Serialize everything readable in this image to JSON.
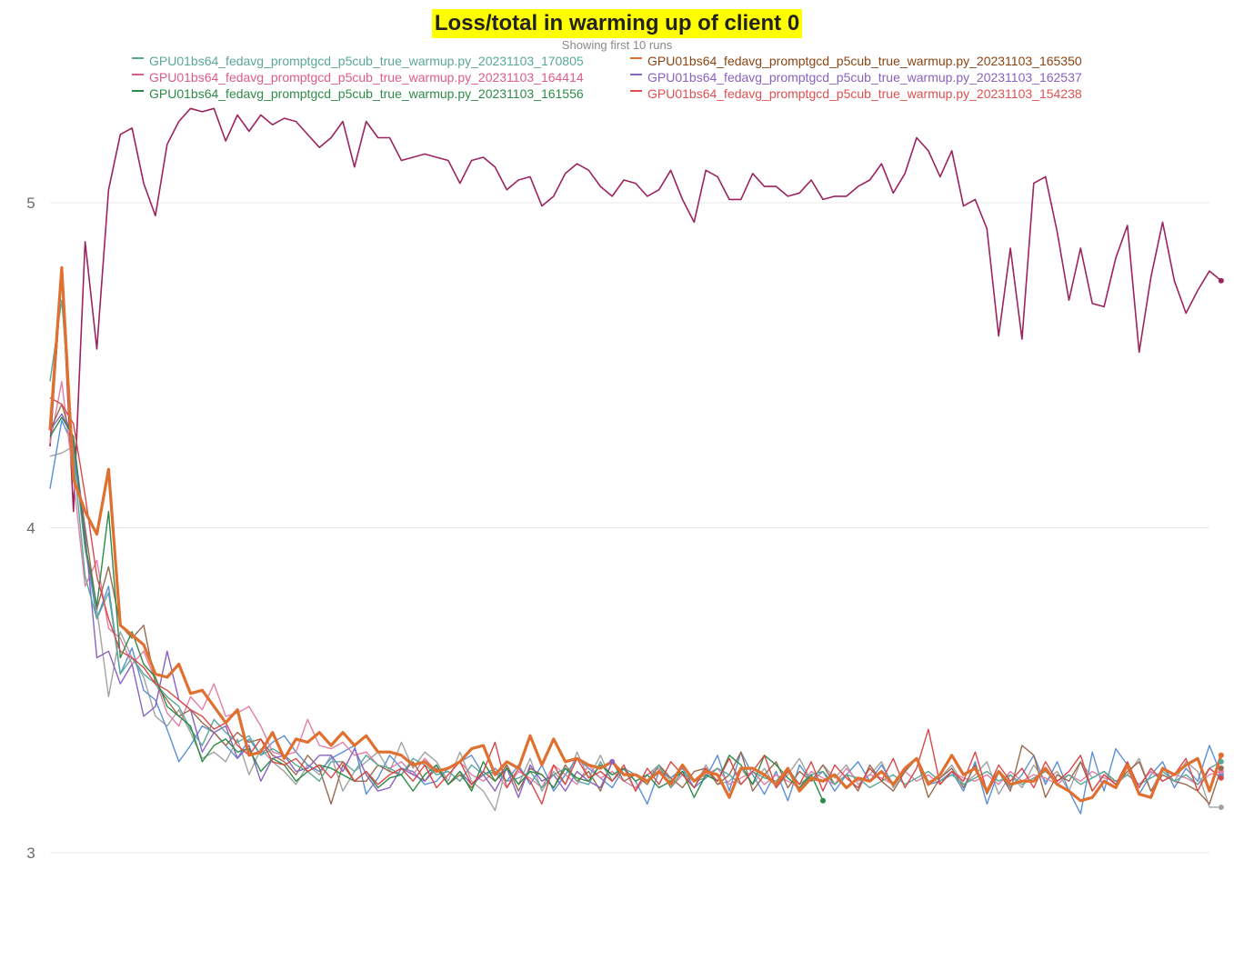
{
  "chart_data": {
    "type": "line",
    "title": "Loss/total in warming up of client 0",
    "subtitle": "Showing first 10 runs",
    "ylim": [
      2.95,
      5.35
    ],
    "xlim": [
      0,
      99
    ],
    "yticks": [
      3,
      4,
      5
    ],
    "grid": true,
    "legend_position": "top",
    "legend_entries": [
      {
        "name": "GPU01bs64_fedavg_promptgcd_p5cub_true_warmup.py_20231103_170805",
        "color": "#5aa897"
      },
      {
        "name": "GPU01bs64_fedavg_promptgcd_p5cub_true_warmup.py_20231103_165350",
        "color": "#8b4513"
      },
      {
        "name": "GPU01bs64_fedavg_promptgcd_p5cub_true_warmup.py_20231103_164414",
        "color": "#e05c8a"
      },
      {
        "name": "GPU01bs64_fedavg_promptgcd_p5cub_true_warmup.py_20231103_162537",
        "color": "#8a62c0"
      },
      {
        "name": "GPU01bs64_fedavg_promptgcd_p5cub_true_warmup.py_20231103_161556",
        "color": "#2e8b47"
      },
      {
        "name": "GPU01bs64_fedavg_promptgcd_p5cub_true_warmup.py_20231103_154238",
        "color": "#e05050"
      }
    ],
    "series": [
      {
        "color": "#9b2460",
        "width": 1.6,
        "values": [
          4.25,
          4.78,
          4.05,
          4.88,
          4.55,
          5.04,
          5.21,
          5.23,
          5.06,
          4.96,
          5.18,
          5.25,
          5.29,
          5.28,
          5.29,
          5.19,
          5.27,
          5.22,
          5.27,
          5.24,
          5.26,
          5.25,
          5.21,
          5.17,
          5.2,
          5.25,
          5.11,
          5.25,
          5.2,
          5.2,
          5.13,
          5.14,
          5.15,
          5.14,
          5.13,
          5.06,
          5.13,
          5.14,
          5.11,
          5.04,
          5.07,
          5.08,
          4.99,
          5.02,
          5.09,
          5.12,
          5.1,
          5.05,
          5.02,
          5.07,
          5.06,
          5.02,
          5.04,
          5.1,
          5.01,
          4.94,
          5.1,
          5.08,
          5.01,
          5.01,
          5.09,
          5.05,
          5.05,
          5.02,
          5.03,
          5.07,
          5.01,
          5.02,
          5.02,
          5.05,
          5.07,
          5.12,
          5.03,
          5.09,
          5.2,
          5.16,
          5.08,
          5.16,
          4.99,
          5.01,
          4.92,
          4.59,
          4.86,
          4.58,
          5.06,
          5.08,
          4.91,
          4.7,
          4.86,
          4.69,
          4.68,
          4.83,
          4.93,
          4.54,
          4.77,
          4.94,
          4.76,
          4.66,
          4.73,
          4.79,
          4.76
        ]
      },
      {
        "color": "#a3a3a3",
        "width": 1.4,
        "values": [
          4.22,
          4.23,
          4.25,
          3.93,
          3.75,
          3.48,
          3.68,
          3.6,
          3.54,
          3.42,
          3.39,
          3.44,
          3.37,
          3.29,
          3.31,
          3.28,
          3.35,
          3.24,
          3.32,
          3.28,
          3.25,
          3.21,
          3.27,
          3.24,
          3.3,
          3.19,
          3.25,
          3.28,
          3.31,
          3.25,
          3.34,
          3.26,
          3.31,
          3.28,
          3.22,
          3.31,
          3.22,
          3.19,
          3.13,
          3.27,
          3.21,
          3.29,
          3.19,
          3.25,
          3.21,
          3.31,
          3.23,
          3.3,
          3.22,
          3.26,
          3.19,
          3.24,
          3.27,
          3.22,
          3.25,
          3.2,
          3.27,
          3.21,
          3.22,
          3.26,
          3.21,
          3.26,
          3.2,
          3.24,
          3.29,
          3.22,
          3.27,
          3.23,
          3.27,
          3.21,
          3.24,
          3.28,
          3.2,
          3.26,
          3.29,
          3.22,
          3.23,
          3.27,
          3.21,
          3.24,
          3.28,
          3.18,
          3.24,
          3.2,
          3.27,
          3.22,
          3.25,
          3.19,
          3.28,
          3.23,
          3.25,
          3.21,
          3.24,
          3.29,
          3.19,
          3.26,
          3.22,
          3.28,
          3.25,
          3.14,
          3.14
        ]
      },
      {
        "color": "#5b8fd6",
        "width": 1.4,
        "values": [
          4.12,
          4.33,
          4.25,
          3.95,
          3.72,
          3.82,
          3.55,
          3.63,
          3.5,
          3.47,
          3.38,
          3.28,
          3.33,
          3.39,
          3.37,
          3.33,
          3.29,
          3.35,
          3.3,
          3.34,
          3.36,
          3.31,
          3.27,
          3.25,
          3.29,
          3.31,
          3.33,
          3.18,
          3.23,
          3.3,
          3.26,
          3.25,
          3.21,
          3.22,
          3.26,
          3.28,
          3.3,
          3.24,
          3.26,
          3.22,
          3.27,
          3.21,
          3.27,
          3.19,
          3.24,
          3.29,
          3.26,
          3.23,
          3.2,
          3.26,
          3.22,
          3.15,
          3.25,
          3.23,
          3.26,
          3.2,
          3.23,
          3.3,
          3.19,
          3.31,
          3.24,
          3.18,
          3.25,
          3.16,
          3.27,
          3.22,
          3.25,
          3.19,
          3.24,
          3.28,
          3.22,
          3.27,
          3.21,
          3.25,
          3.29,
          3.21,
          3.22,
          3.25,
          3.19,
          3.28,
          3.15,
          3.25,
          3.2,
          3.24,
          3.3,
          3.21,
          3.28,
          3.19,
          3.12,
          3.31,
          3.19,
          3.32,
          3.27,
          3.18,
          3.24,
          3.28,
          3.2,
          3.26,
          3.22,
          3.33,
          3.24
        ]
      },
      {
        "color": "#e37fa5",
        "width": 1.4,
        "values": [
          4.26,
          4.45,
          4.15,
          3.82,
          3.9,
          3.69,
          3.66,
          3.58,
          3.62,
          3.53,
          3.43,
          3.39,
          3.48,
          3.44,
          3.52,
          3.42,
          3.43,
          3.45,
          3.39,
          3.31,
          3.3,
          3.31,
          3.41,
          3.33,
          3.32,
          3.34,
          3.3,
          3.31,
          3.27,
          3.26,
          3.28,
          3.24,
          3.29,
          3.25,
          3.26,
          3.28,
          3.24,
          3.22,
          3.25,
          3.2,
          3.25,
          3.23,
          3.2,
          3.27,
          3.24,
          3.21,
          3.27,
          3.23,
          3.25,
          3.22,
          3.2,
          3.24,
          3.26,
          3.2,
          3.24,
          3.22,
          3.24,
          3.26,
          3.21,
          3.23,
          3.25,
          3.21,
          3.24,
          3.22,
          3.2,
          3.25,
          3.23,
          3.21,
          3.26,
          3.22,
          3.24,
          3.23,
          3.21,
          3.25,
          3.22,
          3.24,
          3.21,
          3.25,
          3.23,
          3.22,
          3.24,
          3.21,
          3.25,
          3.22,
          3.24,
          3.23,
          3.21,
          3.24,
          3.22,
          3.25,
          3.23,
          3.22,
          3.24,
          3.21,
          3.25,
          3.22,
          3.24,
          3.23,
          3.21,
          3.24,
          3.25
        ]
      },
      {
        "color": "#9b6a4c",
        "width": 1.4,
        "values": [
          4.3,
          4.38,
          4.26,
          4.0,
          3.75,
          3.88,
          3.7,
          3.66,
          3.7,
          3.52,
          3.47,
          3.42,
          3.44,
          3.4,
          3.37,
          3.33,
          3.37,
          3.34,
          3.35,
          3.3,
          3.28,
          3.24,
          3.3,
          3.26,
          3.15,
          3.27,
          3.22,
          3.22,
          3.27,
          3.25,
          3.24,
          3.28,
          3.22,
          3.26,
          3.21,
          3.24,
          3.2,
          3.25,
          3.22,
          3.27,
          3.19,
          3.26,
          3.24,
          3.2,
          3.27,
          3.22,
          3.25,
          3.19,
          3.28,
          3.22,
          3.24,
          3.21,
          3.27,
          3.23,
          3.2,
          3.25,
          3.26,
          3.21,
          3.24,
          3.31,
          3.19,
          3.24,
          3.28,
          3.2,
          3.25,
          3.22,
          3.27,
          3.21,
          3.24,
          3.19,
          3.27,
          3.22,
          3.19,
          3.25,
          3.29,
          3.17,
          3.23,
          3.26,
          3.2,
          3.27,
          3.18,
          3.25,
          3.19,
          3.33,
          3.3,
          3.17,
          3.24,
          3.22,
          3.28,
          3.19,
          3.24,
          3.21,
          3.25,
          3.28,
          3.19,
          3.24,
          3.22,
          3.21,
          3.19,
          3.15,
          3.26
        ]
      },
      {
        "color": "#8a62c0",
        "width": 1.4,
        "values": [
          4.3,
          4.35,
          4.28,
          3.98,
          3.6,
          3.62,
          3.52,
          3.58,
          3.42,
          3.45,
          3.62,
          3.47,
          3.44,
          3.31,
          3.37,
          3.39,
          3.29,
          3.33,
          3.22,
          3.29,
          3.3,
          3.25,
          3.26,
          3.3,
          3.3,
          3.25,
          3.32,
          3.24,
          3.19,
          3.2,
          3.26,
          3.24,
          3.22,
          3.27,
          3.21,
          3.25,
          3.21,
          3.24,
          3.19,
          3.26,
          3.17,
          3.27,
          3.22,
          3.24,
          3.19,
          3.25,
          3.22,
          3.2,
          3.28
        ]
      },
      {
        "color": "#5aa897",
        "width": 1.4,
        "values": [
          4.45,
          4.7,
          4.22,
          3.85,
          3.72,
          3.8,
          3.55,
          3.6,
          3.55,
          3.52,
          3.48,
          3.45,
          3.38,
          3.33,
          3.41,
          3.37,
          3.34,
          3.36,
          3.3,
          3.32,
          3.3,
          3.27,
          3.25,
          3.22,
          3.28,
          3.28,
          3.25,
          3.3,
          3.27,
          3.26,
          3.24,
          3.29,
          3.27,
          3.24,
          3.25,
          3.22,
          3.27,
          3.24,
          3.25,
          3.22,
          3.23,
          3.25,
          3.2,
          3.24,
          3.26,
          3.22,
          3.21,
          3.28,
          3.22,
          3.26,
          3.24,
          3.22,
          3.27,
          3.2,
          3.25,
          3.22,
          3.23,
          3.26,
          3.24,
          3.21,
          3.25,
          3.23,
          3.22,
          3.26,
          3.21,
          3.24,
          3.25,
          3.21,
          3.24,
          3.23,
          3.2,
          3.22,
          3.24,
          3.21,
          3.23,
          3.25,
          3.22,
          3.24,
          3.21,
          3.23,
          3.25,
          3.22,
          3.24,
          3.21,
          3.23,
          3.25,
          3.22,
          3.24,
          3.21,
          3.23,
          3.25,
          3.22,
          3.24,
          3.21,
          3.23,
          3.25,
          3.22,
          3.24,
          3.21,
          3.26,
          3.28
        ]
      },
      {
        "color": "#2e8b47",
        "width": 1.4,
        "values": [
          4.28,
          4.34,
          4.28,
          3.95,
          3.76,
          4.05,
          3.6,
          3.68,
          3.58,
          3.54,
          3.45,
          3.42,
          3.39,
          3.28,
          3.33,
          3.35,
          3.31,
          3.32,
          3.25,
          3.29,
          3.27,
          3.22,
          3.25,
          3.27,
          3.26,
          3.24,
          3.22,
          3.25,
          3.2,
          3.23,
          3.24,
          3.19,
          3.24,
          3.27,
          3.21,
          3.25,
          3.19,
          3.28,
          3.22,
          3.26,
          3.21,
          3.25,
          3.24,
          3.2,
          3.26,
          3.23,
          3.22,
          3.27,
          3.24,
          3.26,
          3.22,
          3.24,
          3.2,
          3.22,
          3.25,
          3.17,
          3.24,
          3.22,
          3.3,
          3.27,
          3.21,
          3.3,
          3.27,
          3.23,
          3.2,
          3.24,
          3.16
        ]
      },
      {
        "color": "#d94848",
        "width": 1.4,
        "values": [
          4.4,
          4.38,
          4.32,
          4.1,
          3.85,
          3.72,
          3.62,
          3.6,
          3.57,
          3.52,
          3.5,
          3.47,
          3.44,
          3.42,
          3.38,
          3.4,
          3.33,
          3.3,
          3.35,
          3.28,
          3.27,
          3.29,
          3.25,
          3.27,
          3.23,
          3.28,
          3.22,
          3.25,
          3.21,
          3.24,
          3.26,
          3.22,
          3.27,
          3.2,
          3.24,
          3.28,
          3.21,
          3.25,
          3.34,
          3.2,
          3.26,
          3.22,
          3.15,
          3.27,
          3.21,
          3.29,
          3.23,
          3.25,
          3.22,
          3.27,
          3.19,
          3.26,
          3.21,
          3.28,
          3.24,
          3.2,
          3.26,
          3.22,
          3.29,
          3.21,
          3.25,
          3.3,
          3.2,
          3.25,
          3.21,
          3.28,
          3.19,
          3.27,
          3.23,
          3.2,
          3.26,
          3.22,
          3.29,
          3.2,
          3.26,
          3.38,
          3.21,
          3.25,
          3.22,
          3.31,
          3.19,
          3.27,
          3.22,
          3.26,
          3.2,
          3.28,
          3.22,
          3.25,
          3.3,
          3.19,
          3.24,
          3.21,
          3.28,
          3.2,
          3.26,
          3.22,
          3.24,
          3.29,
          3.19,
          3.26,
          3.23
        ]
      },
      {
        "color": "#e07030",
        "width": 3.2,
        "values": [
          4.3,
          4.8,
          4.15,
          4.05,
          3.98,
          4.18,
          3.7,
          3.67,
          3.64,
          3.55,
          3.54,
          3.58,
          3.49,
          3.5,
          3.45,
          3.4,
          3.44,
          3.3,
          3.31,
          3.37,
          3.29,
          3.35,
          3.34,
          3.37,
          3.33,
          3.37,
          3.33,
          3.36,
          3.31,
          3.31,
          3.3,
          3.27,
          3.28,
          3.25,
          3.26,
          3.28,
          3.32,
          3.33,
          3.24,
          3.28,
          3.26,
          3.36,
          3.27,
          3.35,
          3.28,
          3.29,
          3.27,
          3.26,
          3.28,
          3.24,
          3.24,
          3.22,
          3.25,
          3.21,
          3.27,
          3.22,
          3.25,
          3.24,
          3.17,
          3.26,
          3.26,
          3.24,
          3.21,
          3.26,
          3.19,
          3.23,
          3.22,
          3.24,
          3.2,
          3.23,
          3.22,
          3.25,
          3.21,
          3.26,
          3.29,
          3.21,
          3.24,
          3.3,
          3.24,
          3.26,
          3.19,
          3.25,
          3.21,
          3.22,
          3.22,
          3.26,
          3.21,
          3.19,
          3.16,
          3.17,
          3.22,
          3.2,
          3.27,
          3.18,
          3.17,
          3.26,
          3.24,
          3.27,
          3.29,
          3.19,
          3.3
        ]
      }
    ]
  }
}
